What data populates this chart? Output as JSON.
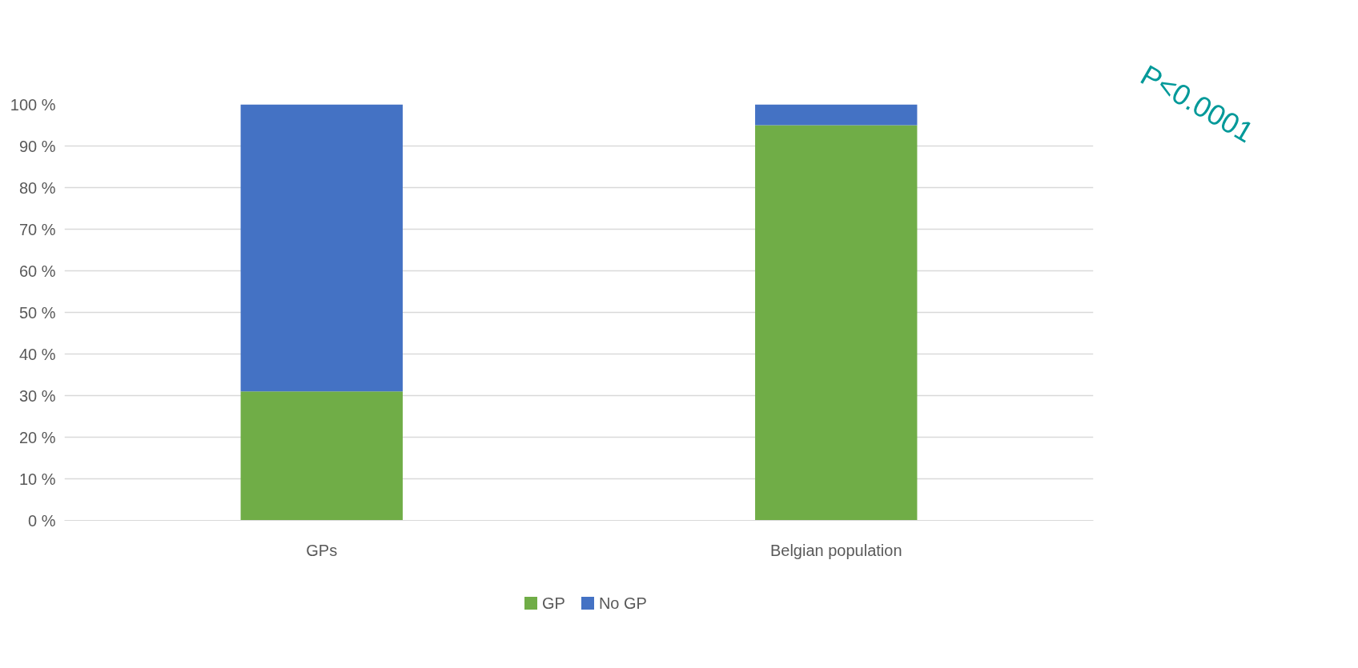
{
  "chart_data": {
    "type": "bar",
    "stacked": true,
    "categories": [
      "GPs",
      "Belgian population"
    ],
    "series": [
      {
        "name": "GP",
        "color": "#70ad47",
        "values": [
          31,
          95
        ]
      },
      {
        "name": "No GP",
        "color": "#4472c4",
        "values": [
          69,
          5
        ]
      }
    ],
    "ylim": [
      0,
      100
    ],
    "yticks": [
      {
        "value": 0,
        "label": "0 %"
      },
      {
        "value": 10,
        "label": "10 %"
      },
      {
        "value": 20,
        "label": "20 %"
      },
      {
        "value": 30,
        "label": "30 %"
      },
      {
        "value": 40,
        "label": "40 %"
      },
      {
        "value": 50,
        "label": "50 %"
      },
      {
        "value": 60,
        "label": "60 %"
      },
      {
        "value": 70,
        "label": "70 %"
      },
      {
        "value": 80,
        "label": "80 %"
      },
      {
        "value": 90,
        "label": "90 %"
      },
      {
        "value": 100,
        "label": "100 %"
      }
    ],
    "grid": "y",
    "legend": "bottom",
    "annotations": [
      "P<0.0001"
    ]
  }
}
